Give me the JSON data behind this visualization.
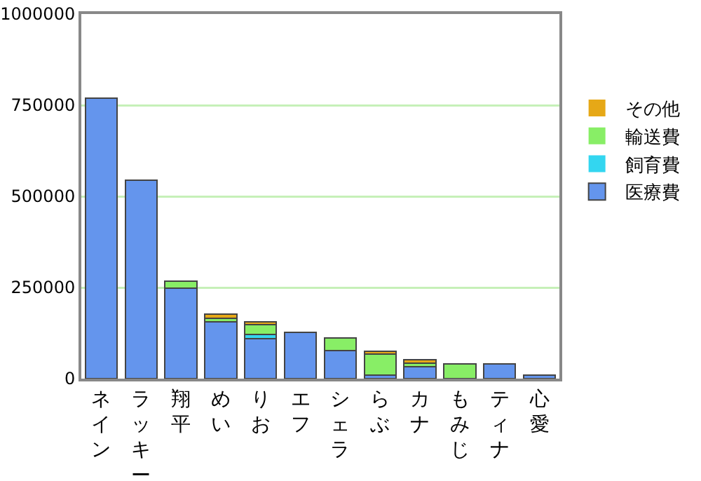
{
  "chart_data": {
    "type": "bar",
    "stacked": true,
    "categories": [
      "ネイン",
      "ラッキー",
      "翔平",
      "めい",
      "りお",
      "エフ",
      "シェラ",
      "らぶ",
      "カナ",
      "もみじ",
      "ティナ",
      "心愛"
    ],
    "series": [
      {
        "name": "医療費",
        "color": "#6495ed",
        "values": [
          770000,
          545000,
          248000,
          155000,
          110000,
          127000,
          76000,
          10000,
          33000,
          0,
          41000,
          10000
        ]
      },
      {
        "name": "飼育費",
        "color": "#33d6f0",
        "values": [
          0,
          0,
          0,
          0,
          12000,
          0,
          0,
          0,
          0,
          0,
          0,
          0
        ]
      },
      {
        "name": "輸送費",
        "color": "#88ee66",
        "values": [
          0,
          0,
          20000,
          10000,
          26000,
          0,
          36000,
          57000,
          10000,
          41000,
          0,
          0
        ]
      },
      {
        "name": "その他",
        "color": "#e6a817",
        "values": [
          0,
          0,
          0,
          12000,
          8000,
          0,
          0,
          8000,
          8000,
          0,
          0,
          0
        ]
      }
    ],
    "ylim": [
      0,
      1000000
    ],
    "yticks": [
      0,
      250000,
      500000,
      750000,
      1000000
    ],
    "grid": "y",
    "legend": "right"
  }
}
